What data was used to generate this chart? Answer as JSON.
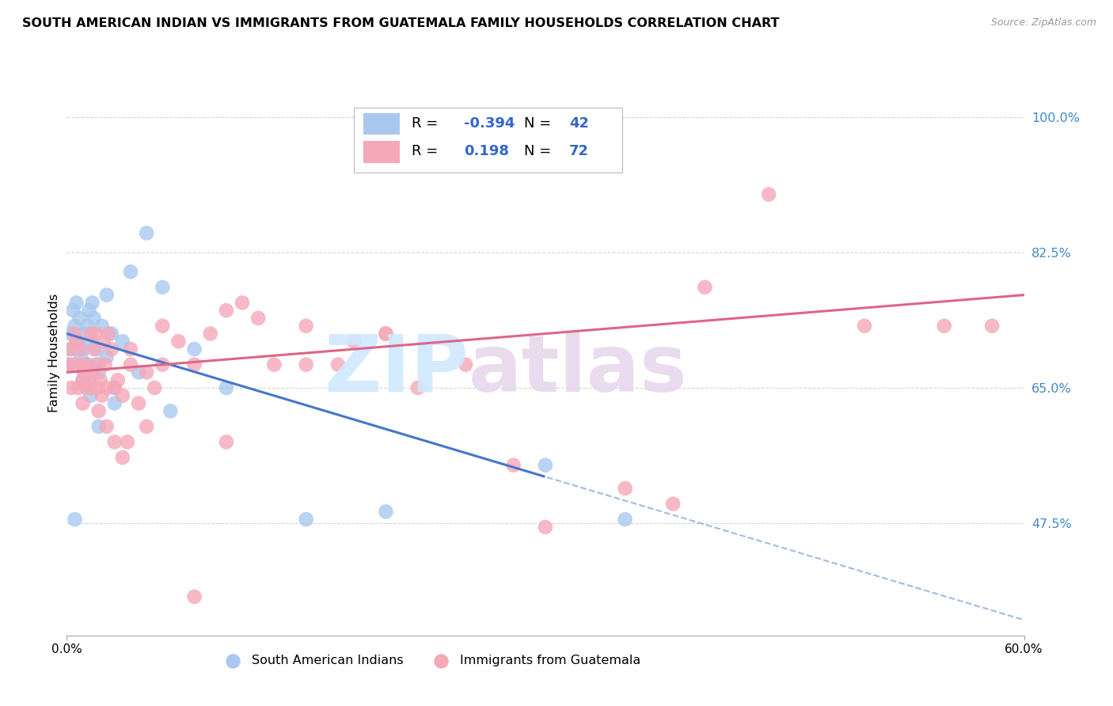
{
  "title": "SOUTH AMERICAN INDIAN VS IMMIGRANTS FROM GUATEMALA FAMILY HOUSEHOLDS CORRELATION CHART",
  "source": "Source: ZipAtlas.com",
  "ylabel": "Family Households",
  "xmin": 0.0,
  "xmax": 60.0,
  "ymin": 33.0,
  "ymax": 106.0,
  "yticks": [
    47.5,
    65.0,
    82.5,
    100.0
  ],
  "ytick_labels": [
    "47.5%",
    "65.0%",
    "82.5%",
    "100.0%"
  ],
  "blue_color": "#A8C8F0",
  "pink_color": "#F5A8B8",
  "blue_line_color": "#4477CC",
  "pink_line_color": "#DD6688",
  "blue_line_y0": 72.0,
  "blue_line_y60": 35.0,
  "blue_solid_max_x": 30.0,
  "pink_line_y0": 67.0,
  "pink_line_y60": 77.0,
  "blue_scatter_x": [
    0.1,
    0.2,
    0.3,
    0.4,
    0.5,
    0.6,
    0.7,
    0.8,
    0.9,
    1.0,
    1.1,
    1.2,
    1.3,
    1.4,
    1.5,
    1.6,
    1.7,
    1.8,
    1.9,
    2.0,
    2.2,
    2.5,
    2.8,
    3.0,
    3.5,
    4.0,
    5.0,
    6.0,
    8.0,
    3.0,
    2.0,
    1.5,
    1.0,
    0.5,
    2.5,
    4.5,
    6.5,
    10.0,
    15.0,
    20.0,
    30.0,
    35.0
  ],
  "blue_scatter_y": [
    68.0,
    72.0,
    70.0,
    75.0,
    73.0,
    76.0,
    71.0,
    74.0,
    69.0,
    70.0,
    72.0,
    68.0,
    73.0,
    75.0,
    71.0,
    76.0,
    74.0,
    68.0,
    70.0,
    67.0,
    73.0,
    69.0,
    72.0,
    65.0,
    71.0,
    80.0,
    85.0,
    78.0,
    70.0,
    63.0,
    60.0,
    64.0,
    66.0,
    48.0,
    77.0,
    67.0,
    62.0,
    65.0,
    48.0,
    49.0,
    55.0,
    48.0
  ],
  "pink_scatter_x": [
    0.1,
    0.2,
    0.3,
    0.4,
    0.5,
    0.6,
    0.7,
    0.8,
    0.9,
    1.0,
    1.1,
    1.2,
    1.3,
    1.4,
    1.5,
    1.6,
    1.7,
    1.8,
    1.9,
    2.0,
    2.1,
    2.2,
    2.3,
    2.4,
    2.5,
    2.6,
    2.8,
    3.0,
    3.2,
    3.5,
    3.8,
    4.0,
    4.5,
    5.0,
    5.5,
    6.0,
    7.0,
    8.0,
    9.0,
    10.0,
    11.0,
    12.0,
    13.0,
    15.0,
    17.0,
    18.0,
    20.0,
    22.0,
    1.0,
    1.5,
    2.0,
    2.5,
    3.0,
    3.5,
    4.0,
    5.0,
    6.0,
    25.0,
    28.0,
    30.0,
    35.0,
    38.0,
    40.0,
    44.0,
    50.0,
    55.0,
    58.0,
    8.0,
    10.0,
    15.0,
    20.0
  ],
  "pink_scatter_y": [
    68.0,
    70.0,
    65.0,
    68.0,
    72.0,
    71.0,
    65.0,
    70.0,
    68.0,
    66.0,
    67.0,
    65.0,
    68.0,
    66.0,
    72.0,
    67.0,
    70.0,
    72.0,
    65.0,
    68.0,
    66.0,
    64.0,
    71.0,
    68.0,
    65.0,
    72.0,
    70.0,
    65.0,
    66.0,
    64.0,
    58.0,
    68.0,
    63.0,
    60.0,
    65.0,
    68.0,
    71.0,
    68.0,
    72.0,
    75.0,
    76.0,
    74.0,
    68.0,
    73.0,
    68.0,
    71.0,
    72.0,
    65.0,
    63.0,
    65.0,
    62.0,
    60.0,
    58.0,
    56.0,
    70.0,
    67.0,
    73.0,
    68.0,
    55.0,
    47.0,
    52.0,
    50.0,
    78.0,
    90.0,
    73.0,
    73.0,
    73.0,
    38.0,
    58.0,
    68.0,
    72.0
  ]
}
